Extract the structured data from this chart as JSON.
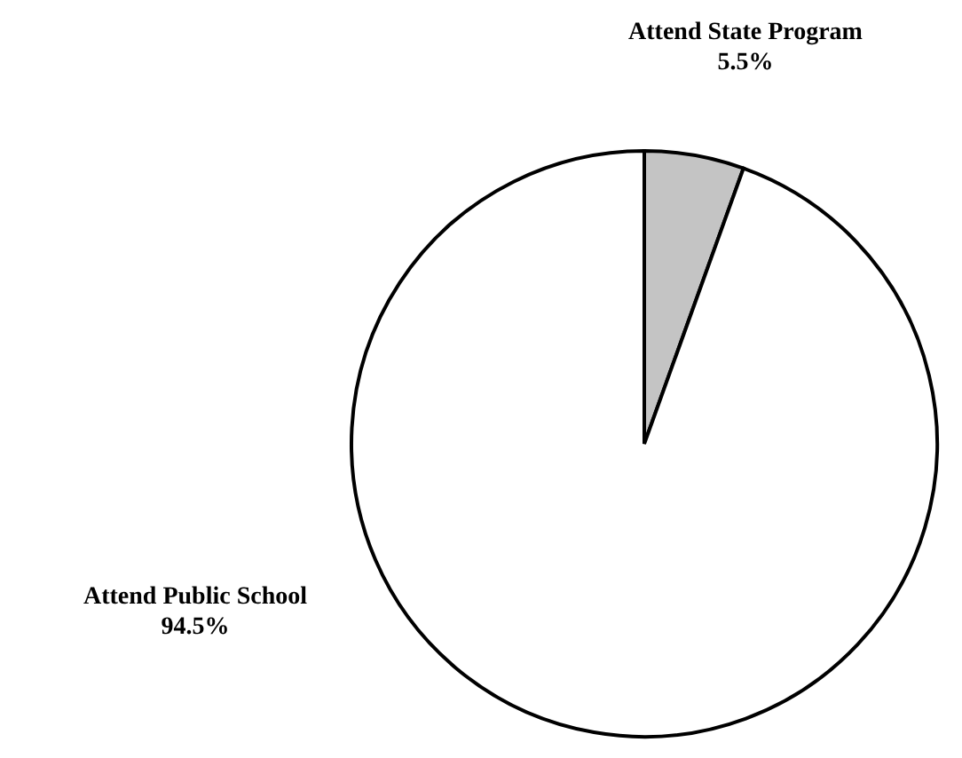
{
  "chart_data": {
    "type": "pie",
    "categories": [
      "Attend State Program",
      "Attend Public School"
    ],
    "values": [
      5.5,
      94.5
    ],
    "value_labels": [
      "5.5%",
      "94.5%"
    ],
    "colors": [
      "#c4c4c4",
      "#ffffff"
    ]
  }
}
